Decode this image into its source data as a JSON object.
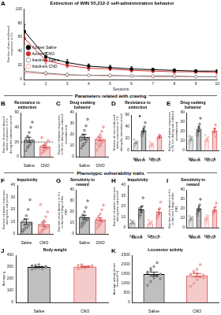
{
  "section_titles": [
    "Parameters related with craving",
    "Phenotypic vulnerability traits"
  ],
  "chart_data": [
    {
      "panel": "A",
      "type": "line",
      "title": "Extinction of WIN 55,212-2 self-administration behavior",
      "x_label": "Sessions",
      "y_label": "Number of non-reinforced responses in 3 h",
      "categories": [
        "1",
        "2",
        "3",
        "4",
        "5",
        "6",
        "7",
        "8",
        "9",
        "10"
      ],
      "series": [
        {
          "name": "Actives Saline",
          "color": "#000000",
          "marker": "circle",
          "values": [
            68,
            32,
            24,
            19,
            17,
            15,
            14,
            13,
            12,
            12
          ],
          "errors": [
            10,
            6,
            4,
            3,
            3,
            3,
            2,
            2,
            2,
            2
          ]
        },
        {
          "name": "Actives CNO",
          "color": "#d32f2f",
          "marker": "circle",
          "values": [
            58,
            27,
            20,
            16,
            15,
            13,
            12,
            11,
            11,
            10
          ],
          "errors": [
            8,
            5,
            3,
            3,
            2,
            2,
            2,
            2,
            2,
            2
          ]
        },
        {
          "name": "Inactives Saline",
          "color": "#7f7f7f",
          "marker": "open_circle",
          "values": [
            12,
            9,
            7,
            6,
            6,
            5,
            5,
            5,
            4,
            4
          ],
          "errors": [
            3,
            2,
            2,
            1,
            1,
            1,
            1,
            1,
            1,
            1
          ]
        },
        {
          "name": "Inactives CNO",
          "color": "#ef9a9a",
          "marker": "open_circle",
          "values": [
            10,
            8,
            6,
            6,
            5,
            5,
            4,
            4,
            4,
            4
          ],
          "errors": [
            3,
            2,
            2,
            1,
            1,
            1,
            1,
            1,
            1,
            1
          ]
        }
      ],
      "ylim": [
        0,
        100
      ],
      "yticks": [
        0,
        20,
        40,
        60,
        80,
        100
      ],
      "legend": "top-right",
      "grid": false
    },
    {
      "panel": "B",
      "type": "bar",
      "title": "Resistance to extinction",
      "y_label": "Number of non-reinforced active responses in 3 h during the extinction period",
      "categories": [
        "Saline",
        "CNO"
      ],
      "values": [
        23,
        14
      ],
      "errors": [
        3.5,
        1.7
      ],
      "points": [
        [
          8,
          12,
          15,
          18,
          22,
          25,
          28,
          33,
          40,
          47,
          20,
          14
        ],
        [
          5,
          7,
          9,
          11,
          12,
          14,
          15,
          17,
          19,
          22,
          26,
          10,
          13
        ]
      ],
      "colors": [
        "#000000",
        "#d32f2f"
      ],
      "threshold": 20,
      "ylim": [
        0,
        60
      ],
      "yticks": [
        0,
        20,
        40,
        60
      ],
      "grid": false
    },
    {
      "panel": "C",
      "type": "bar",
      "title": "Drug-seeking behavior",
      "y_label": "Number of active responses in 90 min during cue-induced reinstatement",
      "categories": [
        "Saline",
        "CNO"
      ],
      "values": [
        18,
        16
      ],
      "errors": [
        2.3,
        1.7
      ],
      "points": [
        [
          8,
          10,
          12,
          14,
          16,
          18,
          20,
          24,
          28,
          34,
          15,
          11
        ],
        [
          6,
          9,
          11,
          13,
          14,
          16,
          18,
          20,
          23,
          27,
          12,
          15,
          10
        ]
      ],
      "colors": [
        "#000000",
        "#d32f2f"
      ],
      "ylim": [
        0,
        40
      ],
      "yticks": [
        0,
        10,
        20,
        30,
        40
      ],
      "grid": false
    },
    {
      "panel": "D",
      "type": "bar",
      "title": "Resistance to extinction",
      "y_label": "Number of non-reinforced active responses in 3 h during the extinction period",
      "categories": [
        "NA",
        "A",
        "NA",
        "A"
      ],
      "groups": [
        "Saline",
        "CNO"
      ],
      "values": [
        13,
        34,
        9.5,
        23
      ],
      "errors": [
        1.5,
        3.3,
        1,
        1.5
      ],
      "points": [
        [
          8,
          10,
          12,
          14,
          15,
          18
        ],
        [
          25,
          30,
          35,
          40,
          47,
          28
        ],
        [
          5,
          7,
          9,
          11,
          12,
          14,
          10,
          8
        ],
        [
          19,
          22,
          26,
          24
        ]
      ],
      "colors": [
        "#7f7f7f",
        "#000000",
        "#ef9a9a",
        "#d32f2f"
      ],
      "annotations": [
        {
          "text": "*",
          "group": "Saline"
        }
      ],
      "ylim": [
        0,
        60
      ],
      "yticks": [
        0,
        20,
        40,
        60
      ],
      "grid": false
    },
    {
      "panel": "E",
      "type": "bar",
      "title": "Drug-seeking behavior",
      "y_label": "Number of active responses in 90 min during cue-induced reinstatement",
      "categories": [
        "NA",
        "A",
        "NA",
        "A"
      ],
      "groups": [
        "Saline",
        "CNO"
      ],
      "values": [
        12,
        23,
        11,
        21
      ],
      "errors": [
        1,
        2.7,
        1.1,
        2
      ],
      "points": [
        [
          8,
          10,
          12,
          14,
          11,
          15
        ],
        [
          16,
          20,
          24,
          28,
          34,
          18
        ],
        [
          6,
          9,
          11,
          13,
          14,
          16,
          10,
          12
        ],
        [
          18,
          20,
          23,
          27,
          15
        ]
      ],
      "colors": [
        "#7f7f7f",
        "#000000",
        "#ef9a9a",
        "#d32f2f"
      ],
      "ylim": [
        0,
        40
      ],
      "yticks": [
        0,
        10,
        20,
        30,
        40
      ],
      "grid": false
    },
    {
      "panel": "F",
      "type": "bar",
      "title": "Impulsivity",
      "y_label": "Number of active responses during time-out period",
      "categories": [
        "Saline",
        "CNO"
      ],
      "values": [
        10,
        8
      ],
      "errors": [
        2.2,
        1.8
      ],
      "points": [
        [
          2,
          4,
          5,
          6,
          8,
          10,
          12,
          15,
          20,
          28,
          3,
          7
        ],
        [
          1,
          3,
          4,
          5,
          6,
          7,
          9,
          11,
          14,
          18,
          24,
          2,
          5
        ]
      ],
      "colors": [
        "#000000",
        "#d32f2f"
      ],
      "ylim": [
        0,
        40
      ],
      "yticks": [
        0,
        10,
        20,
        30,
        40
      ],
      "grid": false
    },
    {
      "panel": "G",
      "type": "bar",
      "title": "Sensitivity to reward",
      "y_label": "Number of reinforcers in 3 h in the last 3 days of the FR5",
      "categories": [
        "Saline",
        "CNO"
      ],
      "values": [
        15,
        13
      ],
      "errors": [
        2,
        1.6
      ],
      "points": [
        [
          6,
          8,
          10,
          12,
          13,
          15,
          17,
          20,
          24,
          30,
          9,
          11
        ],
        [
          5,
          7,
          9,
          11,
          12,
          14,
          16,
          18,
          22,
          26,
          10,
          8,
          13
        ]
      ],
      "colors": [
        "#000000",
        "#d32f2f"
      ],
      "ylim": [
        0,
        40
      ],
      "yticks": [
        0,
        10,
        20,
        30,
        40
      ],
      "grid": false
    },
    {
      "panel": "H",
      "type": "bar",
      "title": "Impulsivity",
      "y_label": "Number of active responses during time-out period",
      "categories": [
        "NA",
        "A",
        "NA",
        "A"
      ],
      "groups": [
        "Saline",
        "CNO"
      ],
      "values": [
        4.5,
        17,
        4,
        15
      ],
      "errors": [
        0.8,
        2.8,
        0.7,
        2.6
      ],
      "points": [
        [
          2,
          4,
          5,
          6,
          3,
          7
        ],
        [
          10,
          12,
          15,
          20,
          28,
          18
        ],
        [
          1,
          3,
          4,
          5,
          6,
          7,
          2,
          5
        ],
        [
          9,
          11,
          14,
          18,
          24
        ]
      ],
      "colors": [
        "#7f7f7f",
        "#000000",
        "#ef9a9a",
        "#d32f2f"
      ],
      "ylim": [
        0,
        40
      ],
      "yticks": [
        0,
        10,
        20,
        30,
        40
      ],
      "grid": false
    },
    {
      "panel": "I",
      "type": "bar",
      "title": "Sensitivity to reward",
      "y_label": "Number of reinforcers in 3 h in the last 3 days of the FR5",
      "categories": [
        "NA",
        "A",
        "NA",
        "A"
      ],
      "groups": [
        "Saline",
        "CNO"
      ],
      "values": [
        9,
        20,
        9,
        19
      ],
      "errors": [
        0.9,
        2.5,
        0.9,
        2.1
      ],
      "points": [
        [
          6,
          8,
          10,
          9,
          11,
          12
        ],
        [
          15,
          17,
          20,
          24,
          30,
          13
        ],
        [
          5,
          7,
          9,
          11,
          12,
          10,
          8,
          13
        ],
        [
          14,
          16,
          18,
          22,
          26
        ]
      ],
      "colors": [
        "#7f7f7f",
        "#000000",
        "#ef9a9a",
        "#d32f2f"
      ],
      "ylim": [
        0,
        40
      ],
      "yticks": [
        0,
        10,
        20,
        30,
        40
      ],
      "grid": false
    },
    {
      "panel": "J",
      "type": "bar",
      "title": "Body weight",
      "y_label": "Average g",
      "categories": [
        "Saline",
        "CNO"
      ],
      "values": [
        300,
        302
      ],
      "errors": [
        3.3,
        3
      ],
      "points": [
        [
          280,
          290,
          295,
          300,
          305,
          310,
          315,
          320,
          285,
          298,
          305,
          292
        ],
        [
          285,
          292,
          300,
          305,
          310,
          315,
          320,
          298,
          302,
          308,
          295,
          312,
          289
        ]
      ],
      "colors": [
        "#000000",
        "#d32f2f"
      ],
      "ylim": [
        0,
        400
      ],
      "yticks": [
        0,
        100,
        200,
        300,
        400
      ],
      "grid": false
    },
    {
      "panel": "K",
      "type": "bar",
      "title": "Locomotor activity",
      "y_label": "Average activity (beam breaks/2 h)",
      "categories": [
        "Saline",
        "CNO"
      ],
      "values": [
        1500,
        1430
      ],
      "errors": [
        100,
        85
      ],
      "points": [
        [
          900,
          1100,
          1300,
          1400,
          1500,
          1600,
          1700,
          1900,
          2100,
          1250,
          1550,
          1800
        ],
        [
          850,
          1000,
          1200,
          1350,
          1450,
          1500,
          1600,
          1750,
          2000,
          1300,
          1400,
          1650,
          1550
        ]
      ],
      "colors": [
        "#000000",
        "#d32f2f"
      ],
      "ylim": [
        0,
        2500
      ],
      "yticks": [
        0,
        500,
        1000,
        1500,
        2000,
        2500
      ],
      "grid": false
    }
  ]
}
